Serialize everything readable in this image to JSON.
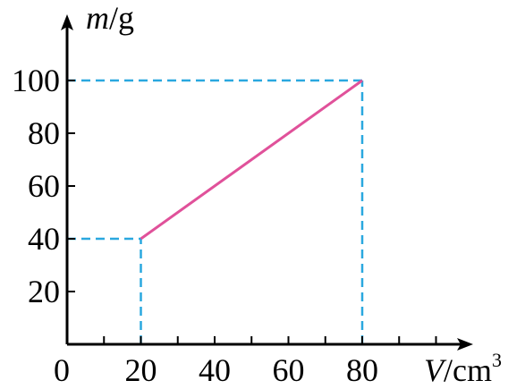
{
  "chart_data": {
    "type": "line",
    "title": "",
    "xlabel": {
      "var": "V",
      "sep": "/",
      "unit": "cm",
      "sup": "3"
    },
    "ylabel": {
      "var": "m",
      "sep": "/",
      "unit": "g"
    },
    "xlim": [
      0,
      100
    ],
    "ylim": [
      0,
      115
    ],
    "x_ticks": [
      20,
      40,
      60,
      80
    ],
    "x_minor_ticks": [
      10,
      30,
      50,
      70,
      90,
      100
    ],
    "y_ticks": [
      20,
      40,
      60,
      80,
      100
    ],
    "origin_label": "0",
    "grid": false,
    "legend": "none",
    "series": [
      {
        "x": [
          20,
          80
        ],
        "y": [
          40,
          100
        ],
        "color": "#e0519a"
      }
    ],
    "guides": [
      {
        "from": [
          0,
          40
        ],
        "to": [
          20,
          40
        ]
      },
      {
        "from": [
          20,
          0
        ],
        "to": [
          20,
          40
        ]
      },
      {
        "from": [
          0,
          100
        ],
        "to": [
          80,
          100
        ]
      },
      {
        "from": [
          80,
          0
        ],
        "to": [
          80,
          100
        ]
      }
    ],
    "guide_color": "#2aa8df",
    "axis_color": "#000000"
  }
}
